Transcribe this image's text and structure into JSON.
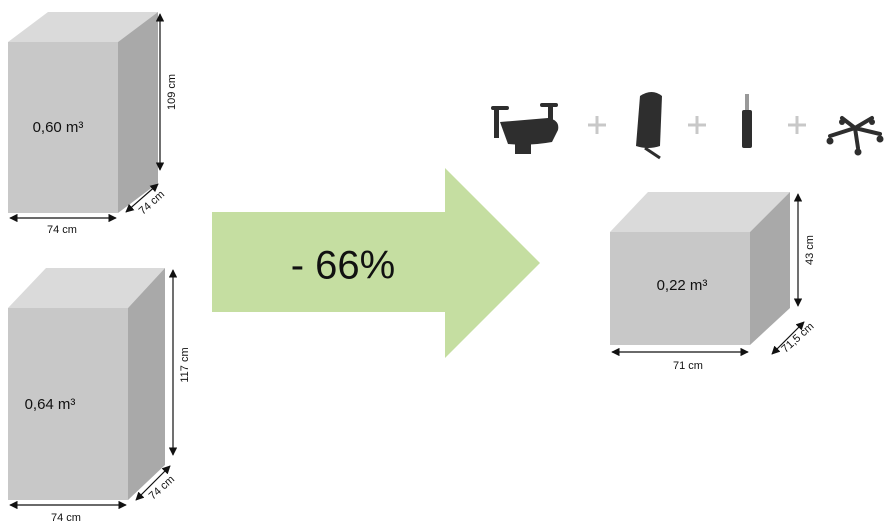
{
  "boxes": [
    {
      "volume": "0,60 m³",
      "width": "74 cm",
      "depth": "74 cm",
      "height": "109 cm"
    },
    {
      "volume": "0,64 m³",
      "width": "74 cm",
      "depth": "74 cm",
      "height": "117 cm"
    },
    {
      "volume": "0,22 m³",
      "width": "71 cm",
      "depth": "71,5 cm",
      "height": "43 cm"
    }
  ],
  "arrow": {
    "label": "- 66%"
  }
}
